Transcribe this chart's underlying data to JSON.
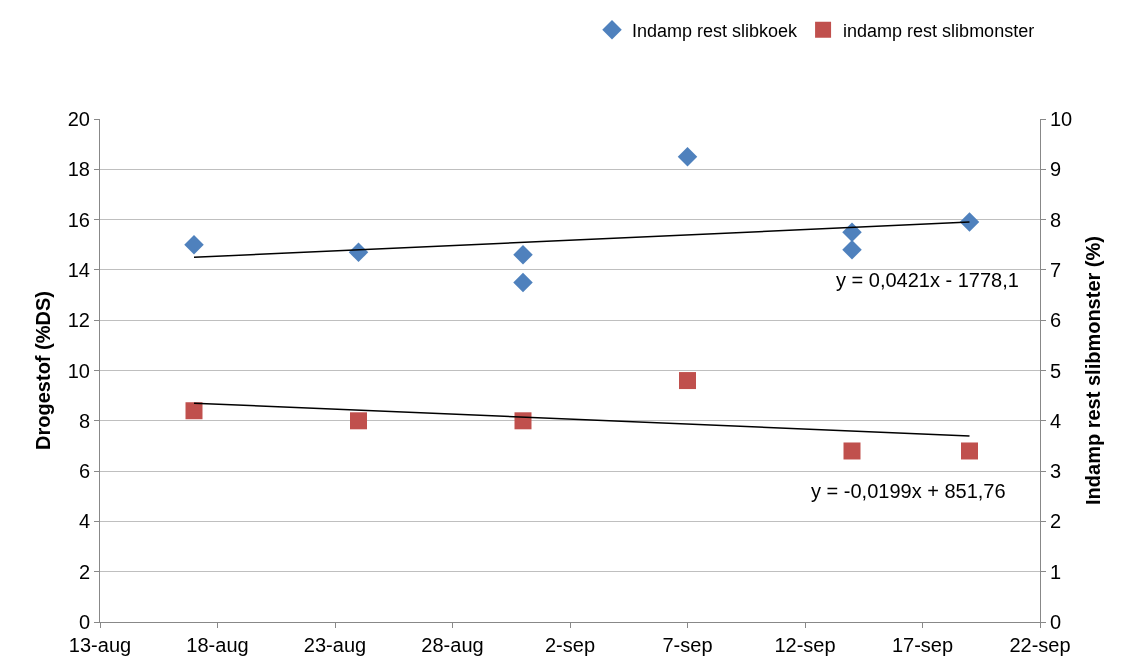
{
  "chart_data": {
    "type": "scatter",
    "ylabel": "Drogestof (%DS)",
    "y2label": "Indamp rest slibmonster (%)",
    "xlim": [
      "--08-13",
      "--09-22"
    ],
    "xticks": [
      {
        "value": "--08-13",
        "label": "13-aug"
      },
      {
        "value": "--08-18",
        "label": "18-aug"
      },
      {
        "value": "--08-23",
        "label": "23-aug"
      },
      {
        "value": "--08-28",
        "label": "28-aug"
      },
      {
        "value": "--09-02",
        "label": "2-sep"
      },
      {
        "value": "--09-07",
        "label": "7-sep"
      },
      {
        "value": "--09-12",
        "label": "12-sep"
      },
      {
        "value": "--09-17",
        "label": "17-sep"
      },
      {
        "value": "--09-22",
        "label": "22-sep"
      }
    ],
    "ylim": [
      0,
      20
    ],
    "yticks": [
      0,
      2,
      4,
      6,
      8,
      10,
      12,
      14,
      16,
      18,
      20
    ],
    "y2lim": [
      0,
      10
    ],
    "y2ticks": [
      0,
      1,
      2,
      3,
      4,
      5,
      6,
      7,
      8,
      9,
      10
    ],
    "grid": "y",
    "legend": "top right",
    "series": [
      {
        "name": "Indamp rest slibkoek",
        "type": "scatter",
        "marker": "diamond",
        "color": "#4f81bd",
        "x": [
          "--08-17",
          "--08-24",
          "--08-31",
          "--08-31",
          "--09-07",
          "--09-14",
          "--09-14",
          "--09-19"
        ],
        "values": [
          15.0,
          14.7,
          14.6,
          13.5,
          18.5,
          15.5,
          14.8,
          15.9
        ]
      },
      {
        "name": "indamp rest slibmonster",
        "type": "scatter",
        "marker": "square",
        "color": "#c0504d",
        "axis": "y2",
        "x": [
          "--08-17",
          "--08-24",
          "--08-31",
          "--09-07",
          "--09-14",
          "--09-19"
        ],
        "values": [
          4.2,
          4.0,
          4.0,
          4.8,
          3.4,
          3.4
        ]
      },
      {
        "type": "line",
        "marker": "none",
        "color": "#000000",
        "x": [
          "--08-17",
          "--09-19"
        ],
        "values": [
          14.5,
          15.9
        ]
      },
      {
        "type": "line",
        "marker": "none",
        "color": "#000000",
        "axis": "y2",
        "x": [
          "--08-17",
          "--09-19"
        ],
        "values": [
          4.35,
          3.7
        ]
      }
    ],
    "annotations": [
      "y = 0,0421x - 1778,1",
      "y = -0,0199x + 851,76"
    ]
  }
}
